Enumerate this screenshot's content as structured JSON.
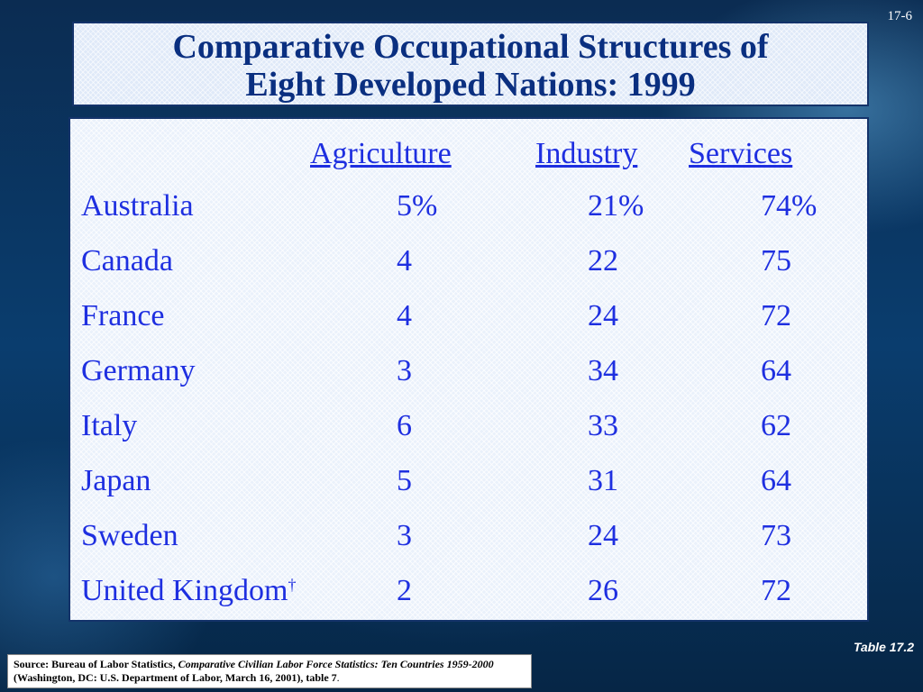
{
  "slide_number": "17-6",
  "title": {
    "line1": "Comparative Occupational Structures of",
    "line2": "Eight Developed Nations: 1999"
  },
  "table": {
    "headers": [
      "Agriculture",
      "Industry",
      "Services"
    ],
    "rows": [
      {
        "country": "Australia",
        "agriculture": "5%",
        "industry": "21%",
        "services": "74%"
      },
      {
        "country": "Canada",
        "agriculture": "4",
        "industry": "22",
        "services": "75"
      },
      {
        "country": "France",
        "agriculture": "4",
        "industry": "24",
        "services": "72"
      },
      {
        "country": "Germany",
        "agriculture": "3",
        "industry": "34",
        "services": "64"
      },
      {
        "country": "Italy",
        "agriculture": "6",
        "industry": "33",
        "services": "62"
      },
      {
        "country": "Japan",
        "agriculture": "5",
        "industry": "31",
        "services": "64"
      },
      {
        "country": "Sweden",
        "agriculture": "3",
        "industry": "24",
        "services": "73"
      },
      {
        "country": "United Kingdom",
        "footnote_mark": "†",
        "agriculture": "2",
        "industry": "26",
        "services": "72"
      }
    ]
  },
  "table_label": "Table 17.2",
  "source": {
    "prefix": "Source: Bureau of Labor Statistics, ",
    "title_italic": "Comparative Civilian Labor Force Statistics: Ten Countries 1959-2000",
    "suffix": " (Washington, DC: U.S. Department of Labor, March 16, 2001), table 7",
    "period": "."
  },
  "colors": {
    "title_text": "#0a2f80",
    "table_text": "#1e2fe0"
  }
}
